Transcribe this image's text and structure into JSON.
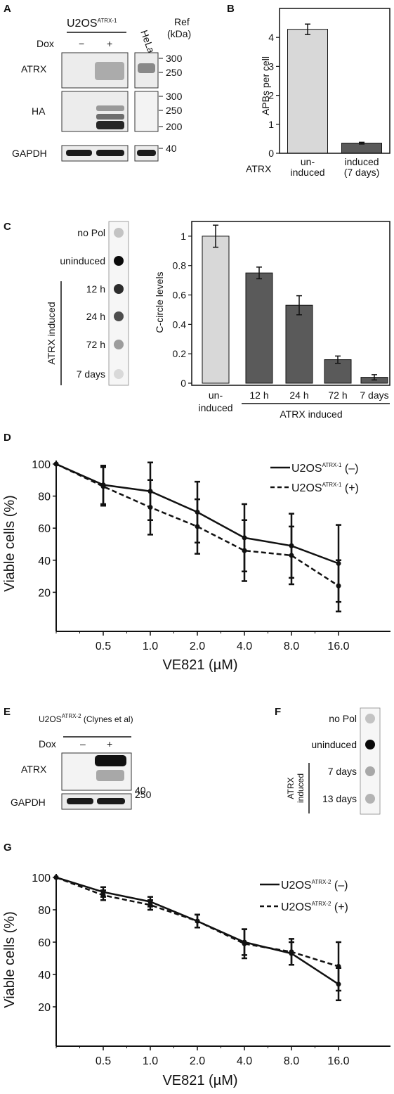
{
  "panels": {
    "A": {
      "letter": "A",
      "cell_line_base": "U2OS",
      "cell_line_sup": "ATRX-1",
      "hela": "HeLa",
      "ref_line1": "Ref",
      "ref_line2": "(kDa)",
      "dox": "Dox",
      "dox_minus": "−",
      "dox_plus": "+",
      "rows": [
        "ATRX",
        "HA",
        "GAPDH"
      ],
      "markers_atrx": [
        "300",
        "250"
      ],
      "markers_ha": [
        "300",
        "250",
        "200"
      ],
      "markers_gapdh": [
        "40"
      ]
    },
    "B": {
      "letter": "B",
      "ylabel": "APBs per cell",
      "row_label": "ATRX",
      "yticks": [
        "0",
        "1",
        "2",
        "3",
        "4"
      ],
      "cat1_line1": "un-",
      "cat1_line2": "induced",
      "cat2_line1": "induced",
      "cat2_line2": "(7 days)"
    },
    "C": {
      "letter": "C",
      "dot_labels": [
        "no Pol",
        "uninduced",
        "12 h",
        "24 h",
        "72 h",
        "7 days"
      ],
      "vertical_label": "ATRX induced",
      "ylabel": "C-circle levels",
      "yticks": [
        "0",
        "0.2",
        "0.4",
        "0.6",
        "0.8",
        "1"
      ],
      "cat_labels": [
        "12 h",
        "24 h",
        "72 h",
        "7 days"
      ],
      "cat1_line1": "un-",
      "cat1_line2": "induced",
      "group_label": "ATRX induced"
    },
    "D": {
      "letter": "D",
      "ylabel": "Viable cells (%)",
      "xlabel": "VE821 (µM)",
      "yticks": [
        "20",
        "40",
        "60",
        "80",
        "100"
      ],
      "xticks": [
        "0.5",
        "1.0",
        "2.0",
        "4.0",
        "8.0",
        "16.0"
      ],
      "legend1_base": "U2OS",
      "legend1_sup": "ATRX-1",
      "legend1_suffix": " (–)",
      "legend2_base": "U2OS",
      "legend2_sup": "ATRX-1",
      "legend2_suffix": " (+)"
    },
    "E": {
      "letter": "E",
      "title_base": "U2OS",
      "title_sup": "ATRX-2",
      "title_suffix": " (Clynes et al)",
      "dox": "Dox",
      "dox_minus": "–",
      "dox_plus": "+",
      "rows": [
        "ATRX",
        "GAPDH"
      ],
      "marker_250": "250",
      "marker_40": "40"
    },
    "F": {
      "letter": "F",
      "dot_labels": [
        "no Pol",
        "uninduced",
        "7 days",
        "13 days"
      ],
      "vertical_label_line1": "ATRX",
      "vertical_label_line2": "induced"
    },
    "G": {
      "letter": "G",
      "ylabel": "Viable cells (%)",
      "xlabel": "VE821 (µM)",
      "yticks": [
        "20",
        "40",
        "60",
        "80",
        "100"
      ],
      "xticks": [
        "0.5",
        "1.0",
        "2.0",
        "4.0",
        "8.0",
        "16.0"
      ],
      "legend1_base": "U2OS",
      "legend1_sup": "ATRX-2",
      "legend1_suffix": " (–)",
      "legend2_base": "U2OS",
      "legend2_sup": "ATRX-2",
      "legend2_suffix": " (+)"
    }
  },
  "chart_data": [
    {
      "panel": "B",
      "type": "bar",
      "categories": [
        "un-induced",
        "induced (7 days)"
      ],
      "values": [
        4.28,
        0.35
      ],
      "errors": [
        0.18,
        0.03
      ],
      "colors": [
        "#d8d8d8",
        "#5a5a5a"
      ],
      "ylabel": "APBs per cell",
      "ylim": [
        0,
        5
      ]
    },
    {
      "panel": "C",
      "type": "bar",
      "categories": [
        "un-induced",
        "12 h",
        "24 h",
        "72 h",
        "7 days"
      ],
      "values": [
        1.0,
        0.75,
        0.53,
        0.16,
        0.04
      ],
      "errors": [
        0.075,
        0.04,
        0.065,
        0.025,
        0.018
      ],
      "colors": [
        "#d8d8d8",
        "#5a5a5a",
        "#5a5a5a",
        "#5a5a5a",
        "#5a5a5a"
      ],
      "ylabel": "C-circle levels",
      "ylim": [
        0,
        1.1
      ]
    },
    {
      "panel": "D",
      "type": "line",
      "x": [
        0,
        0.5,
        1.0,
        2.0,
        4.0,
        8.0,
        16.0
      ],
      "ylim": [
        0,
        100
      ],
      "xlabel": "VE821 (µM)",
      "ylabel": "Viable cells (%)",
      "series": [
        {
          "name": "U2OSATRX-1 (–)",
          "style": "solid",
          "values": [
            100,
            87,
            83,
            70,
            54,
            49,
            38
          ],
          "errors": [
            0,
            12,
            18,
            19,
            21,
            20,
            24
          ]
        },
        {
          "name": "U2OSATRX-1 (+)",
          "style": "dashed",
          "values": [
            100,
            86,
            73,
            61,
            46,
            43,
            24
          ],
          "errors": [
            0,
            12,
            17,
            17,
            19,
            18,
            16
          ]
        }
      ]
    },
    {
      "panel": "G",
      "type": "line",
      "x": [
        0,
        0.5,
        1.0,
        2.0,
        4.0,
        8.0,
        16.0
      ],
      "ylim": [
        0,
        100
      ],
      "xlabel": "VE821 (µM)",
      "ylabel": "Viable cells (%)",
      "series": [
        {
          "name": "U2OSATRX-2 (–)",
          "style": "solid",
          "values": [
            100,
            91,
            85,
            73,
            60,
            53,
            34
          ],
          "errors": [
            0,
            3,
            3,
            4,
            8,
            7,
            10
          ]
        },
        {
          "name": "U2OSATRX-2 (+)",
          "style": "dashed",
          "values": [
            100,
            89,
            83,
            73,
            59,
            54,
            45
          ],
          "errors": [
            0,
            3,
            3,
            4,
            9,
            8,
            15
          ]
        }
      ]
    }
  ],
  "dot_blots": {
    "C": [
      0.18,
      1.0,
      0.85,
      0.7,
      0.35,
      0.08
    ],
    "F": [
      0.18,
      1.0,
      0.3,
      0.25
    ]
  }
}
